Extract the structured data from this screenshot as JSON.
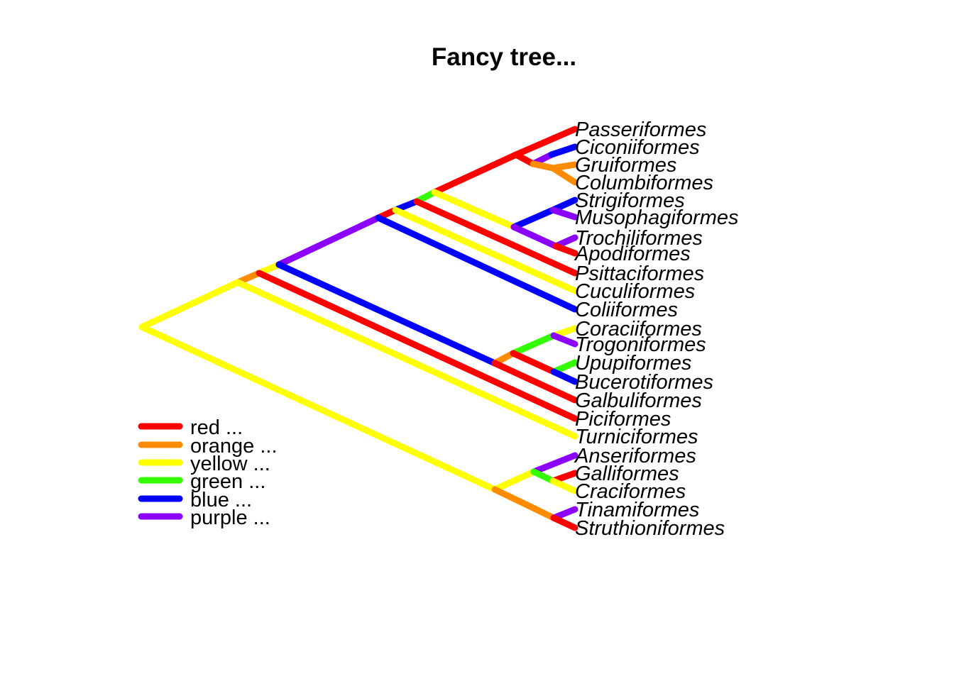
{
  "title": "Fancy tree...",
  "colors": {
    "red": "#ff0000",
    "orange": "#ff8c00",
    "yellow": "#ffff00",
    "green": "#33ff00",
    "blue": "#0000ff",
    "purple": "#8b00ff"
  },
  "tips": [
    "Passeriformes",
    "Ciconiiformes",
    "Gruiformes",
    "Columbiformes",
    "Strigiformes",
    "Musophagiformes",
    "Trochiliformes",
    "Apodiformes",
    "Psittaciformes",
    "Cuculiformes",
    "Coliiformes",
    "Coraciiformes",
    "Trogoniformes",
    "Upupiformes",
    "Bucerotiformes",
    "Galbuliformes",
    "Piciformes",
    "Turniciformes",
    "Anseriformes",
    "Galliformes",
    "Craciformes",
    "Tinamiformes",
    "Struthioniformes"
  ],
  "legend": [
    {
      "label": "red ...",
      "color": "red"
    },
    {
      "label": "orange ...",
      "color": "orange"
    },
    {
      "label": "yellow ...",
      "color": "yellow"
    },
    {
      "label": "green ...",
      "color": "green"
    },
    {
      "label": "blue ...",
      "color": "blue"
    },
    {
      "label": "purple ...",
      "color": "purple"
    }
  ]
}
